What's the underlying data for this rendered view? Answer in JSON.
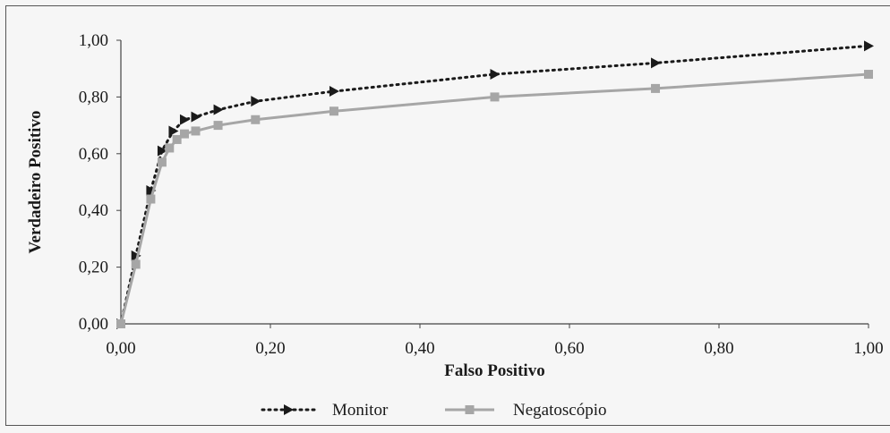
{
  "chart_data": {
    "type": "line",
    "xlabel": "Falso Positivo",
    "ylabel": "Verdadeiro Positivo",
    "xlim": [
      0,
      1
    ],
    "ylim": [
      0,
      1
    ],
    "x_ticks": [
      "0,00",
      "0,20",
      "0,40",
      "0,60",
      "0,80",
      "1,00"
    ],
    "y_ticks": [
      "0,00",
      "0,20",
      "0,40",
      "0,60",
      "0,80",
      "1,00"
    ],
    "grid": false,
    "legend": "bottom",
    "series": [
      {
        "name": "Monitor",
        "style": "dotted",
        "marker": "triangle-right",
        "color": "#1a1a1a",
        "x": [
          0.0,
          0.02,
          0.04,
          0.055,
          0.07,
          0.085,
          0.1,
          0.13,
          0.18,
          0.285,
          0.5,
          0.715,
          1.0
        ],
        "y": [
          0.0,
          0.24,
          0.47,
          0.61,
          0.68,
          0.72,
          0.73,
          0.755,
          0.785,
          0.82,
          0.88,
          0.92,
          0.98
        ]
      },
      {
        "name": "Negatoscópio",
        "style": "solid",
        "marker": "square",
        "color": "#a6a6a6",
        "x": [
          0.0,
          0.02,
          0.04,
          0.055,
          0.065,
          0.075,
          0.085,
          0.1,
          0.13,
          0.18,
          0.285,
          0.5,
          0.715,
          1.0
        ],
        "y": [
          0.0,
          0.21,
          0.44,
          0.57,
          0.62,
          0.65,
          0.67,
          0.68,
          0.7,
          0.72,
          0.75,
          0.8,
          0.83,
          0.88
        ]
      }
    ]
  }
}
